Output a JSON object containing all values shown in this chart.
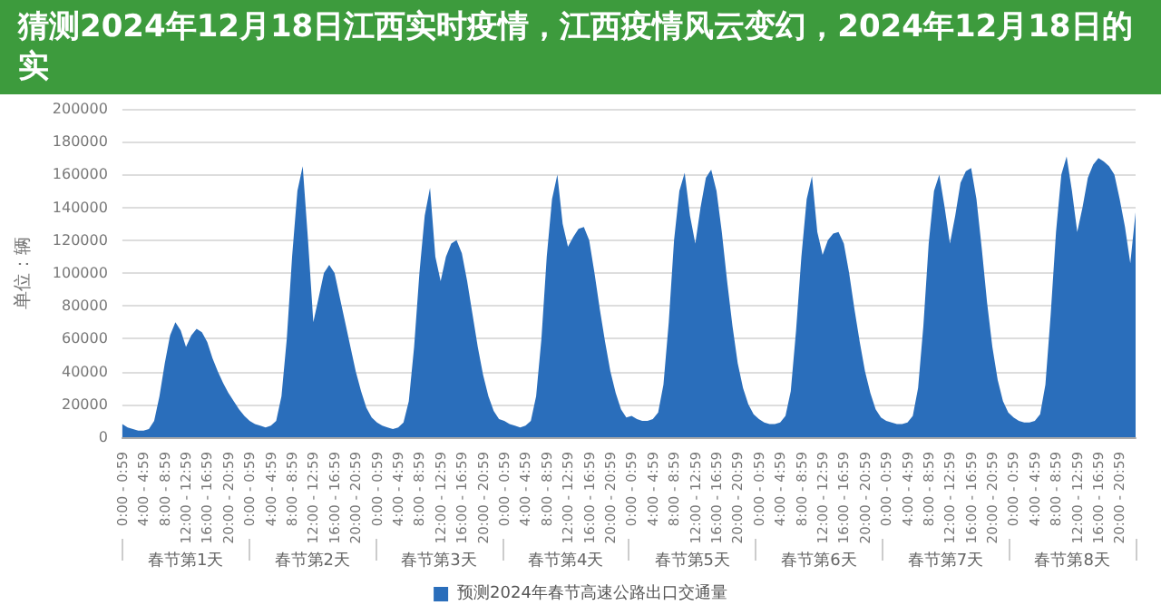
{
  "chart_data": {
    "type": "area",
    "title": "猜测2024年12月18日江西实时疫情，江西疫情风云变幻，2024年12月18日的实",
    "ylabel": "单位：辆",
    "annotations": [
      "春节第1天",
      "春节第2天",
      "春节第3天",
      "春节第4天",
      "春节第5天",
      "春节第6天",
      "春节第7天",
      "春节第8天"
    ],
    "categories": [
      "0:00 - 0:59",
      null,
      null,
      null,
      "4:00 - 4:59",
      null,
      null,
      null,
      "8:00 - 8:59",
      null,
      null,
      null,
      "12:00 - 12:59",
      null,
      null,
      null,
      "16:00 - 16:59",
      null,
      null,
      null,
      "20:00 - 20:59",
      null,
      null,
      null,
      "0:00 - 0:59",
      null,
      null,
      null,
      "4:00 - 4:59",
      null,
      null,
      null,
      "8:00 - 8:59",
      null,
      null,
      null,
      "12:00 - 12:59",
      null,
      null,
      null,
      "16:00 - 16:59",
      null,
      null,
      null,
      "20:00 - 20:59",
      null,
      null,
      null,
      "0:00 - 0:59",
      null,
      null,
      null,
      "4:00 - 4:59",
      null,
      null,
      null,
      "8:00 - 8:59",
      null,
      null,
      null,
      "12:00 - 12:59",
      null,
      null,
      null,
      "16:00 - 16:59",
      null,
      null,
      null,
      "20:00 - 20:59",
      null,
      null,
      null,
      "0:00 - 0:59",
      null,
      null,
      null,
      "4:00 - 4:59",
      null,
      null,
      null,
      "8:00 - 8:59",
      null,
      null,
      null,
      "12:00 - 12:59",
      null,
      null,
      null,
      "16:00 - 16:59",
      null,
      null,
      null,
      "20:00 - 20:59",
      null,
      null,
      null,
      "0:00 - 0:59",
      null,
      null,
      null,
      "4:00 - 4:59",
      null,
      null,
      null,
      "8:00 - 8:59",
      null,
      null,
      null,
      "12:00 - 12:59",
      null,
      null,
      null,
      "16:00 - 16:59",
      null,
      null,
      null,
      "20:00 - 20:59",
      null,
      null,
      null,
      "0:00 - 0:59",
      null,
      null,
      null,
      "4:00 - 4:59",
      null,
      null,
      null,
      "8:00 - 8:59",
      null,
      null,
      null,
      "12:00 - 12:59",
      null,
      null,
      null,
      "16:00 - 16:59",
      null,
      null,
      null,
      "20:00 - 20:59",
      null,
      null,
      null,
      "0:00 - 0:59",
      null,
      null,
      null,
      "4:00 - 4:59",
      null,
      null,
      null,
      "8:00 - 8:59",
      null,
      null,
      null,
      "12:00 - 12:59",
      null,
      null,
      null,
      "16:00 - 16:59",
      null,
      null,
      null,
      "20:00 - 20:59",
      null,
      null,
      null,
      "0:00 - 0:59",
      null,
      null,
      null,
      "4:00 - 4:59",
      null,
      null,
      null,
      "8:00 - 8:59",
      null,
      null,
      null,
      "12:00 - 12:59",
      null,
      null,
      null,
      "16:00 - 16:59",
      null,
      null,
      null,
      "20:00 - 20:59",
      null,
      null,
      null
    ],
    "series": [
      {
        "name": "预测2024年春节高速公路出口交通量",
        "color": "#2a6ebb",
        "values": [
          8000,
          6000,
          5000,
          4000,
          4000,
          5000,
          10000,
          25000,
          45000,
          62000,
          70000,
          65000,
          55000,
          62000,
          66000,
          64000,
          58000,
          48000,
          40000,
          33000,
          27000,
          22000,
          17000,
          13000,
          10000,
          8000,
          7000,
          6000,
          7000,
          10000,
          25000,
          60000,
          110000,
          150000,
          165000,
          120000,
          70000,
          85000,
          100000,
          105000,
          100000,
          85000,
          70000,
          55000,
          40000,
          28000,
          18000,
          12000,
          9000,
          7000,
          6000,
          5000,
          6000,
          9000,
          22000,
          55000,
          100000,
          135000,
          152000,
          110000,
          95000,
          110000,
          118000,
          120000,
          112000,
          95000,
          75000,
          55000,
          38000,
          25000,
          16000,
          11000,
          10000,
          8000,
          7000,
          6000,
          7000,
          10000,
          25000,
          60000,
          110000,
          145000,
          160000,
          130000,
          116000,
          122000,
          127000,
          128000,
          120000,
          100000,
          78000,
          58000,
          40000,
          27000,
          17000,
          12000,
          13000,
          11000,
          10000,
          10000,
          11000,
          15000,
          32000,
          70000,
          120000,
          150000,
          161000,
          135000,
          118000,
          140000,
          158000,
          163000,
          150000,
          125000,
          95000,
          68000,
          45000,
          30000,
          20000,
          14000,
          11000,
          9000,
          8000,
          8000,
          9000,
          13000,
          28000,
          65000,
          110000,
          145000,
          159000,
          125000,
          111000,
          120000,
          124000,
          125000,
          118000,
          100000,
          78000,
          58000,
          40000,
          27000,
          17000,
          12000,
          10000,
          9000,
          8000,
          8000,
          9000,
          13000,
          30000,
          68000,
          118000,
          150000,
          160000,
          140000,
          118000,
          135000,
          155000,
          162000,
          164000,
          145000,
          115000,
          82000,
          55000,
          35000,
          22000,
          15000,
          12000,
          10000,
          9000,
          9000,
          10000,
          14000,
          32000,
          75000,
          125000,
          160000,
          171000,
          150000,
          125000,
          140000,
          158000,
          166000,
          170000,
          168000,
          165000,
          160000,
          145000,
          128000,
          106000,
          137000
        ]
      }
    ],
    "ylim": [
      0,
      200000
    ],
    "yticks": [
      0,
      20000,
      40000,
      60000,
      80000,
      100000,
      120000,
      140000,
      160000,
      180000,
      200000
    ],
    "grid": "y",
    "legend": "bottom",
    "marker": "none"
  }
}
